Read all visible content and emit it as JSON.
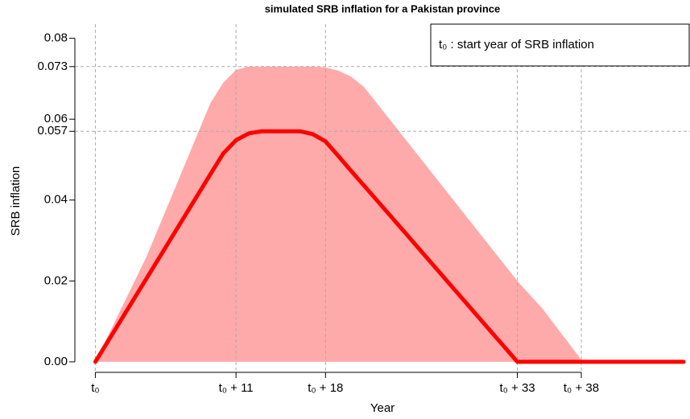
{
  "chart_data": {
    "type": "line",
    "title": "simulated SRB inflation for a Pakistan province",
    "xlabel": "Year",
    "ylabel": "SRB inflation",
    "legend_text": "t₀ : start year of SRB inflation",
    "legend_position": "top-right",
    "x": [
      0,
      4,
      9,
      10,
      11,
      12,
      13,
      16,
      17,
      18,
      19,
      20,
      21,
      22,
      25,
      30,
      33,
      35,
      38,
      39,
      46
    ],
    "series": [
      {
        "color": "#ff0000",
        "values": [
          0,
          0.0206,
          0.0464,
          0.0515,
          0.0548,
          0.0565,
          0.057,
          0.057,
          0.0563,
          0.0545,
          0.0509,
          0.0472,
          0.0436,
          0.04,
          0.0291,
          0.0109,
          0,
          0,
          0,
          0,
          0
        ]
      }
    ],
    "band": {
      "color": "#ffaaaa",
      "upper": [
        0,
        0.026,
        0.064,
        0.069,
        0.0722,
        0.073,
        0.073,
        0.073,
        0.073,
        0.0728,
        0.072,
        0.0705,
        0.068,
        0.064,
        0.052,
        0.032,
        0.02,
        0.013,
        0.0005,
        0,
        0
      ]
    },
    "xlim": [
      -1.6,
      46.5
    ],
    "ylim": [
      -0.0026,
      0.0835
    ],
    "xticks": [
      {
        "value": 0,
        "label": "t₀"
      },
      {
        "value": 11,
        "label": "t₀ + 11"
      },
      {
        "value": 18,
        "label": "t₀ + 18"
      },
      {
        "value": 33,
        "label": "t₀ + 33"
      },
      {
        "value": 38,
        "label": "t₀ + 38"
      }
    ],
    "yticks": [
      {
        "value": 0,
        "label": "0.00"
      },
      0.02,
      0.04,
      0.06,
      0.08
    ],
    "yticks_ref": [
      0.057,
      0.073
    ],
    "grid": "dashed"
  }
}
